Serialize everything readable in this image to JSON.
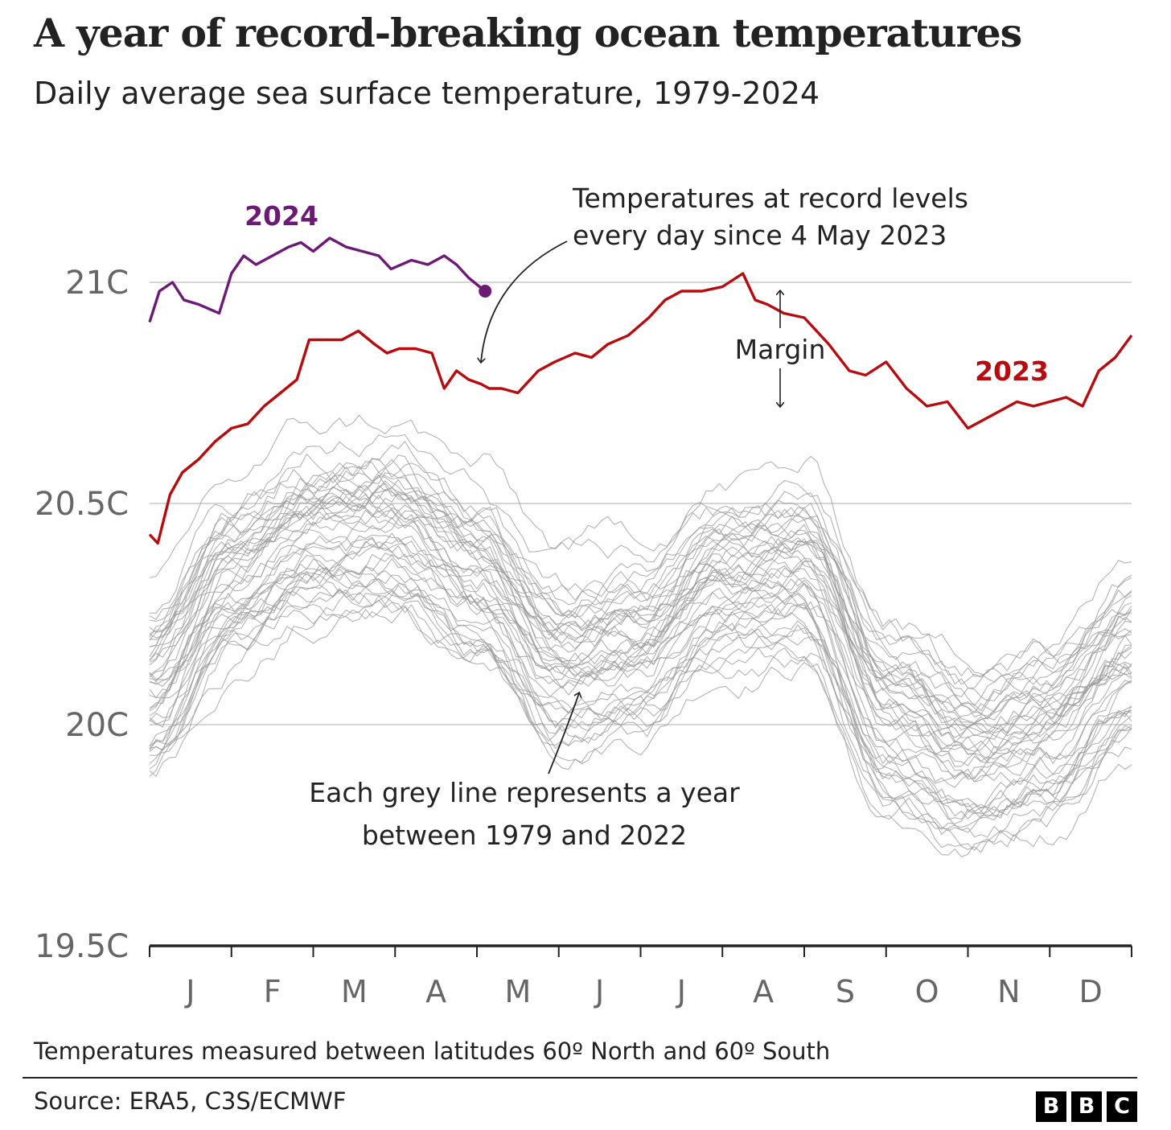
{
  "title": "A year of record-breaking ocean temperatures",
  "subtitle": "Daily average sea surface temperature, 1979-2024",
  "footnote": "Temperatures measured between latitudes 60º North and 60º South",
  "source": "Source: ERA5, C3S/ECMWF",
  "logo": [
    "B",
    "B",
    "C"
  ],
  "chart_data": {
    "type": "line",
    "title": "A year of record-breaking ocean temperatures",
    "subtitle": "Daily average sea surface temperature, 1979-2024",
    "xlabel": "",
    "ylabel": "",
    "x_unit": "month of year (1 = start of January, 13 = end of December)",
    "xlim": [
      1,
      13
    ],
    "ylim": [
      19.5,
      21.3
    ],
    "months": [
      "J",
      "F",
      "M",
      "A",
      "M",
      "J",
      "J",
      "A",
      "S",
      "O",
      "N",
      "D"
    ],
    "yticks": [
      {
        "value": 21.0,
        "label": "21C"
      },
      {
        "value": 20.5,
        "label": "20.5C"
      },
      {
        "value": 20.0,
        "label": "20C"
      },
      {
        "value": 19.5,
        "label": "19.5C"
      }
    ],
    "colors": {
      "2024": "#6c1a76",
      "2023": "#b80b0f",
      "history": "#9a9a9a",
      "grid": "#c8c8c8",
      "axis": "#222222"
    },
    "series": [
      {
        "name": "2024",
        "x": [
          1.0,
          1.12,
          1.28,
          1.42,
          1.6,
          1.85,
          2.0,
          2.15,
          2.3,
          2.5,
          2.7,
          2.85,
          3.0,
          3.2,
          3.4,
          3.6,
          3.8,
          3.95,
          4.2,
          4.4,
          4.6,
          4.75,
          4.9,
          5.1
        ],
        "values": [
          20.91,
          20.98,
          21.0,
          20.96,
          20.95,
          20.93,
          21.02,
          21.06,
          21.04,
          21.06,
          21.08,
          21.09,
          21.07,
          21.1,
          21.08,
          21.07,
          21.06,
          21.03,
          21.05,
          21.04,
          21.06,
          21.04,
          21.01,
          20.98
        ],
        "end_marker": true
      },
      {
        "name": "2023",
        "x": [
          1.0,
          1.1,
          1.25,
          1.4,
          1.6,
          1.8,
          2.0,
          2.2,
          2.4,
          2.6,
          2.8,
          2.95,
          3.15,
          3.35,
          3.55,
          3.75,
          3.9,
          4.05,
          4.25,
          4.45,
          4.6,
          4.75,
          4.9,
          5.05,
          5.15,
          5.3,
          5.5,
          5.75,
          5.95,
          6.2,
          6.4,
          6.6,
          6.85,
          7.1,
          7.3,
          7.5,
          7.75,
          8.0,
          8.25,
          8.4,
          8.55,
          8.75,
          9.0,
          9.3,
          9.55,
          9.75,
          10.0,
          10.25,
          10.5,
          10.75,
          11.0,
          11.2,
          11.4,
          11.6,
          11.8,
          12.0,
          12.2,
          12.4,
          12.6,
          12.8,
          13.0
        ],
        "values": [
          20.43,
          20.41,
          20.52,
          20.57,
          20.6,
          20.64,
          20.67,
          20.68,
          20.72,
          20.75,
          20.78,
          20.87,
          20.87,
          20.87,
          20.89,
          20.86,
          20.84,
          20.85,
          20.85,
          20.84,
          20.76,
          20.8,
          20.78,
          20.77,
          20.76,
          20.76,
          20.75,
          20.8,
          20.82,
          20.84,
          20.83,
          20.86,
          20.88,
          20.92,
          20.96,
          20.98,
          20.98,
          20.99,
          21.02,
          20.96,
          20.95,
          20.93,
          20.92,
          20.86,
          20.8,
          20.79,
          20.82,
          20.76,
          20.72,
          20.73,
          20.67,
          20.69,
          20.71,
          20.73,
          20.72,
          20.73,
          20.74,
          20.72,
          20.8,
          20.83,
          20.88
        ]
      }
    ],
    "history_years": [
      1979,
      2022
    ],
    "history_note": "44 grey lines, one per year 1979-2022",
    "annotations": [
      {
        "label": "2024",
        "series": "2024"
      },
      {
        "label": "2023",
        "series": "2023"
      },
      {
        "text": [
          "Temperatures at record levels",
          "every day since 4 May 2023"
        ],
        "target": "2023 line, early May"
      },
      {
        "text": [
          "Margin"
        ],
        "target": "gap between 2023 and previous record, August"
      },
      {
        "text": [
          "Each grey line represents a year",
          "between 1979 and 2022"
        ],
        "target": "grey lines"
      }
    ]
  }
}
